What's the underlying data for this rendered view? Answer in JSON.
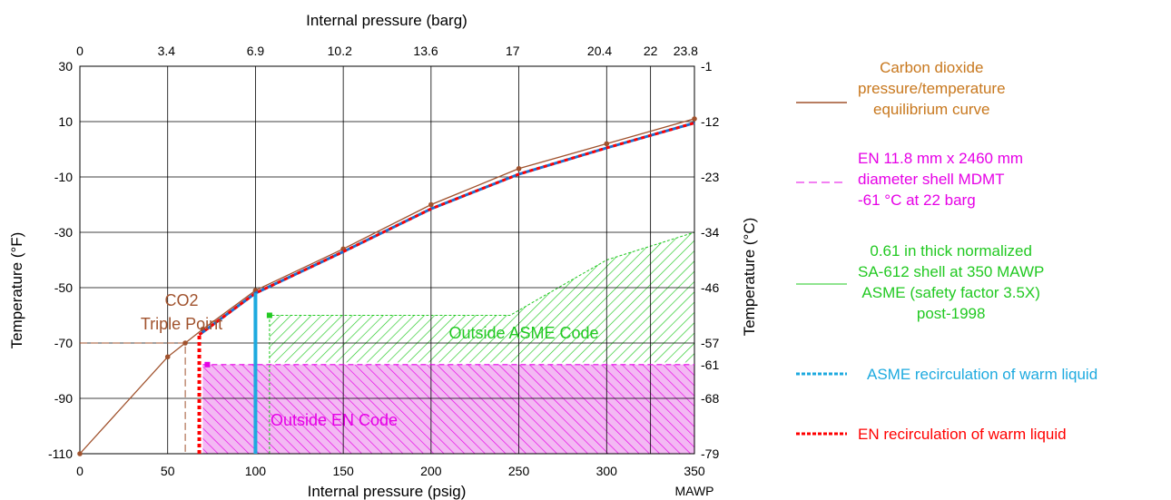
{
  "colors": {
    "co2": "#a0522d",
    "en": "#e600e6",
    "asme": "#22c922",
    "asme_recirc": "#1eaadf",
    "en_recirc": "#ff0000",
    "mawp_curve": "#1e6fd0",
    "grid": "#000000"
  },
  "chart_data": {
    "type": "line",
    "xlabel": "Internal pressure (psig)",
    "x2label": "Internal pressure (barg)",
    "ylabel": "Temperature (°F)",
    "y2label": "Temperature (°C)",
    "xlim": [
      0,
      350
    ],
    "ylim": [
      -110,
      30
    ],
    "grid": true,
    "x_ticks": [
      0,
      50,
      100,
      150,
      200,
      250,
      300,
      350
    ],
    "x_tick_labels": [
      "0",
      "50",
      "100",
      "150",
      "200",
      "250",
      "300",
      "350"
    ],
    "x_extra_label": "MAWP",
    "y_ticks": [
      30,
      10,
      -10,
      -30,
      -50,
      -70,
      -90,
      -110
    ],
    "y_tick_labels": [
      "30",
      "10",
      "-10",
      "-30",
      "-50",
      "-70",
      "-90",
      "-110"
    ],
    "x2_ticks": [
      {
        "psig": 0,
        "label": "0"
      },
      {
        "psig": 49.3,
        "label": "3.4"
      },
      {
        "psig": 100,
        "label": "6.9"
      },
      {
        "psig": 148,
        "label": "10.2"
      },
      {
        "psig": 197,
        "label": "13.6"
      },
      {
        "psig": 246.5,
        "label": "17"
      },
      {
        "psig": 296,
        "label": "20.4"
      },
      {
        "psig": 325,
        "label": "22"
      },
      {
        "psig": 345,
        "label": "23.8"
      }
    ],
    "y2_ticks": [
      {
        "f": 30,
        "label": "-1"
      },
      {
        "f": 10,
        "label": "-12"
      },
      {
        "f": -10,
        "label": "-23"
      },
      {
        "f": -30,
        "label": "-34"
      },
      {
        "f": -50,
        "label": "-46"
      },
      {
        "f": -70,
        "label": "-57"
      },
      {
        "f": -77.8,
        "label": "-61"
      },
      {
        "f": -90,
        "label": "-68"
      },
      {
        "f": -110,
        "label": "-79"
      }
    ],
    "co2_curve": {
      "name": "Carbon dioxide pressure/temperature equilibrium curve",
      "points": [
        [
          0,
          -110
        ],
        [
          50,
          -75
        ],
        [
          60,
          -70
        ],
        [
          70,
          -65
        ],
        [
          100,
          -51
        ],
        [
          150,
          -36
        ],
        [
          200,
          -20
        ],
        [
          250,
          -7
        ],
        [
          300,
          2
        ],
        [
          350,
          11
        ]
      ]
    },
    "mawp_curve": {
      "points": [
        [
          68,
          -67
        ],
        [
          100,
          -52
        ],
        [
          150,
          -37
        ],
        [
          200,
          -21.5
        ],
        [
          250,
          -9
        ],
        [
          300,
          0.5
        ],
        [
          350,
          9.5
        ]
      ]
    },
    "co2_triple_point": {
      "x": 60,
      "y": -70,
      "label_line1": "CO2",
      "label_line2": "Triple Point"
    },
    "asme_region": {
      "label": "Outside ASME Code",
      "boundary": [
        [
          108,
          -60
        ],
        [
          245,
          -60
        ],
        [
          300,
          -40
        ],
        [
          350,
          -30
        ],
        [
          350,
          -77
        ],
        [
          108,
          -77
        ]
      ]
    },
    "en_region": {
      "label": "Outside EN Code",
      "boundary": [
        [
          70,
          -77.8
        ],
        [
          350,
          -77.8
        ],
        [
          350,
          -110
        ],
        [
          70,
          -110
        ]
      ]
    },
    "asme_recirc_line": {
      "x": 100,
      "y_from": -110,
      "y_to": -52
    },
    "en_recirc_line": {
      "x": 68,
      "y_from": -110,
      "y_to": -67
    },
    "en_mdmt_line": {
      "x_from": 70,
      "x_to": 350,
      "y": -77.8
    }
  },
  "legend": {
    "co2": "Carbon dioxide\npressure/temperature\nequilibrium curve",
    "en": "EN 11.8 mm x 2460 mm\ndiameter shell MDMT\n-61 °C at 22 barg",
    "asme": "0.61 in thick normalized\nSA-612 shell at 350 MAWP\nASME (safety factor 3.5X)\npost-1998",
    "asme_recirc": "ASME recirculation of warm liquid",
    "en_recirc": "EN recirculation of warm liquid"
  }
}
